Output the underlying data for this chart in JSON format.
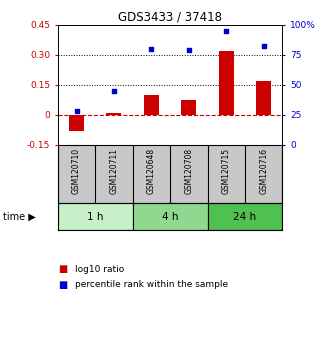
{
  "title": "GDS3433 / 37418",
  "samples": [
    "GSM120710",
    "GSM120711",
    "GSM120648",
    "GSM120708",
    "GSM120715",
    "GSM120716"
  ],
  "log10_ratio": [
    -0.08,
    0.01,
    0.1,
    0.075,
    0.32,
    0.17
  ],
  "percentile_rank": [
    28,
    45,
    80,
    79,
    95,
    82
  ],
  "ylim_left": [
    -0.15,
    0.45
  ],
  "ylim_right": [
    0,
    100
  ],
  "yticks_left": [
    -0.15,
    0.0,
    0.15,
    0.3,
    0.45
  ],
  "yticks_right": [
    0,
    25,
    50,
    75,
    100
  ],
  "ytick_labels_left": [
    "-0.15",
    "0",
    "0.15",
    "0.30",
    "0.45"
  ],
  "ytick_labels_right": [
    "0",
    "25",
    "50",
    "75",
    "100%"
  ],
  "hlines": [
    0.15,
    0.3
  ],
  "time_groups": [
    {
      "label": "1 h",
      "indices": [
        0,
        1
      ],
      "color": "#c8f0c8"
    },
    {
      "label": "4 h",
      "indices": [
        2,
        3
      ],
      "color": "#90d890"
    },
    {
      "label": "24 h",
      "indices": [
        4,
        5
      ],
      "color": "#50c050"
    }
  ],
  "bar_color": "#cc0000",
  "dot_color": "#0000cc",
  "zero_line_color": "#cc0000",
  "bg_color": "#ffffff",
  "left_tick_color": "#cc0000",
  "right_tick_color": "#0000cc",
  "label_bg_color": "#c8c8c8"
}
